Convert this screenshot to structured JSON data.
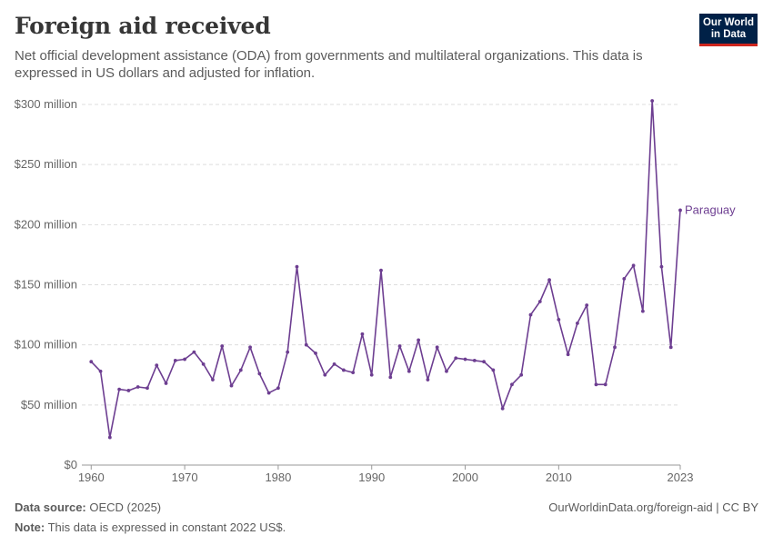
{
  "header": {
    "title": "Foreign aid received",
    "subtitle": "Net official development assistance (ODA) from governments and multilateral organizations. This data is expressed in US dollars and adjusted for inflation.",
    "logo_line1": "Our World",
    "logo_line2": "in Data"
  },
  "footer": {
    "source_label": "Data source:",
    "source_value": "OECD (2025)",
    "note_label": "Note:",
    "note_value": "This data is expressed in constant 2022 US$.",
    "url_text": "OurWorldinData.org/foreign-aid | CC BY"
  },
  "colors": {
    "series": "#6d3e91",
    "grid": "#dddddd",
    "axis": "#999999",
    "logo_bg": "#002147",
    "logo_accent": "#ce261e"
  },
  "chart_data": {
    "type": "line",
    "title": "Foreign aid received",
    "xlabel": "",
    "ylabel": "",
    "xlim": [
      1959,
      2023
    ],
    "ylim": [
      0,
      300000000
    ],
    "y_ticks": [
      0,
      50000000,
      100000000,
      150000000,
      200000000,
      250000000,
      300000000
    ],
    "y_tick_labels": [
      "$0",
      "$50 million",
      "$100 million",
      "$150 million",
      "$200 million",
      "$250 million",
      "$300 million"
    ],
    "x_ticks": [
      1960,
      1970,
      1980,
      1990,
      2000,
      2010,
      2023
    ],
    "x_tick_labels": [
      "1960",
      "1970",
      "1980",
      "1990",
      "2000",
      "2010",
      "2023"
    ],
    "grid": "horizontal dashed",
    "legend": "inline label at line end",
    "series": [
      {
        "name": "Paraguay",
        "x": [
          1960,
          1961,
          1962,
          1963,
          1964,
          1965,
          1966,
          1967,
          1968,
          1969,
          1970,
          1971,
          1972,
          1973,
          1974,
          1975,
          1976,
          1977,
          1978,
          1979,
          1980,
          1981,
          1982,
          1983,
          1984,
          1985,
          1986,
          1987,
          1988,
          1989,
          1990,
          1991,
          1992,
          1993,
          1994,
          1995,
          1996,
          1997,
          1998,
          1999,
          2000,
          2001,
          2002,
          2003,
          2004,
          2005,
          2006,
          2007,
          2008,
          2009,
          2010,
          2011,
          2012,
          2013,
          2014,
          2015,
          2016,
          2017,
          2018,
          2019,
          2020,
          2021,
          2022,
          2023
        ],
        "values": [
          86000000,
          78000000,
          23000000,
          63000000,
          62000000,
          65000000,
          64000000,
          83000000,
          68000000,
          87000000,
          88000000,
          94000000,
          84000000,
          71000000,
          99000000,
          66000000,
          79000000,
          98000000,
          76000000,
          60000000,
          64000000,
          94000000,
          165000000,
          100000000,
          93000000,
          75000000,
          84000000,
          79000000,
          77000000,
          109000000,
          75000000,
          162000000,
          73000000,
          99000000,
          78000000,
          104000000,
          71000000,
          98000000,
          78000000,
          89000000,
          88000000,
          87000000,
          86000000,
          79000000,
          47000000,
          67000000,
          75000000,
          125000000,
          136000000,
          154000000,
          121000000,
          92000000,
          118000000,
          133000000,
          67000000,
          67000000,
          98000000,
          155000000,
          166000000,
          128000000,
          303000000,
          165000000,
          98000000,
          212000000
        ]
      }
    ]
  }
}
